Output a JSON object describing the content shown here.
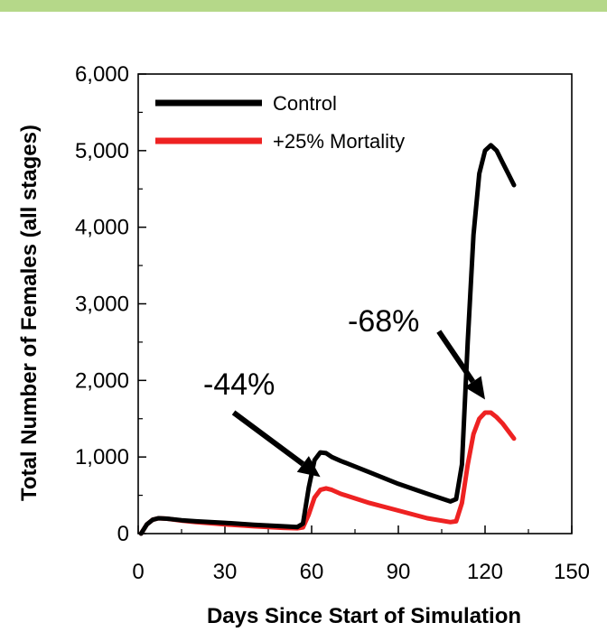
{
  "chart_data": {
    "type": "line",
    "title": "",
    "xlabel": "Days Since Start of Simulation",
    "ylabel": "Total Number of Females (all stages)",
    "xlim": [
      0,
      150
    ],
    "ylim": [
      0,
      6000
    ],
    "x_ticks": [
      0,
      30,
      60,
      90,
      120,
      150
    ],
    "x_tick_labels": [
      "0",
      "30",
      "60",
      "90",
      "120",
      "150"
    ],
    "y_ticks": [
      0,
      1000,
      2000,
      3000,
      4000,
      5000,
      6000
    ],
    "y_tick_labels": [
      "0",
      "1,000",
      "2,000",
      "3,000",
      "4,000",
      "5,000",
      "6,000"
    ],
    "grid": false,
    "legend_position": "top-left",
    "series": [
      {
        "name": "Control",
        "color": "#000000",
        "x": [
          1,
          3,
          5,
          7,
          10,
          15,
          20,
          30,
          40,
          50,
          55,
          57,
          59,
          61,
          63,
          65,
          67,
          70,
          80,
          90,
          100,
          108,
          110,
          112,
          114,
          116,
          118,
          120,
          122,
          124,
          126,
          128,
          130
        ],
        "y": [
          0,
          120,
          180,
          200,
          195,
          175,
          160,
          140,
          115,
          95,
          85,
          130,
          600,
          960,
          1060,
          1050,
          1000,
          950,
          800,
          650,
          520,
          420,
          450,
          900,
          2500,
          3900,
          4700,
          5000,
          5070,
          5000,
          4850,
          4700,
          4550
        ]
      },
      {
        "name": "+25% Mortality",
        "color": "#ee2222",
        "x": [
          1,
          3,
          5,
          7,
          10,
          15,
          20,
          30,
          40,
          50,
          55,
          57,
          59,
          61,
          63,
          65,
          67,
          70,
          80,
          90,
          100,
          108,
          110,
          112,
          114,
          116,
          118,
          120,
          122,
          124,
          126,
          128,
          130
        ],
        "y": [
          0,
          120,
          180,
          200,
          195,
          170,
          150,
          120,
          95,
          75,
          70,
          80,
          250,
          470,
          570,
          590,
          570,
          520,
          400,
          300,
          200,
          150,
          160,
          400,
          900,
          1300,
          1500,
          1580,
          1580,
          1520,
          1440,
          1340,
          1240
        ]
      }
    ],
    "annotations": [
      {
        "text": "-44%",
        "arrow_from": [
          33,
          1580
        ],
        "arrow_to": [
          63,
          740
        ]
      },
      {
        "text": "-68%",
        "arrow_from": [
          104,
          2640
        ],
        "arrow_to": [
          120,
          1750
        ]
      }
    ]
  }
}
